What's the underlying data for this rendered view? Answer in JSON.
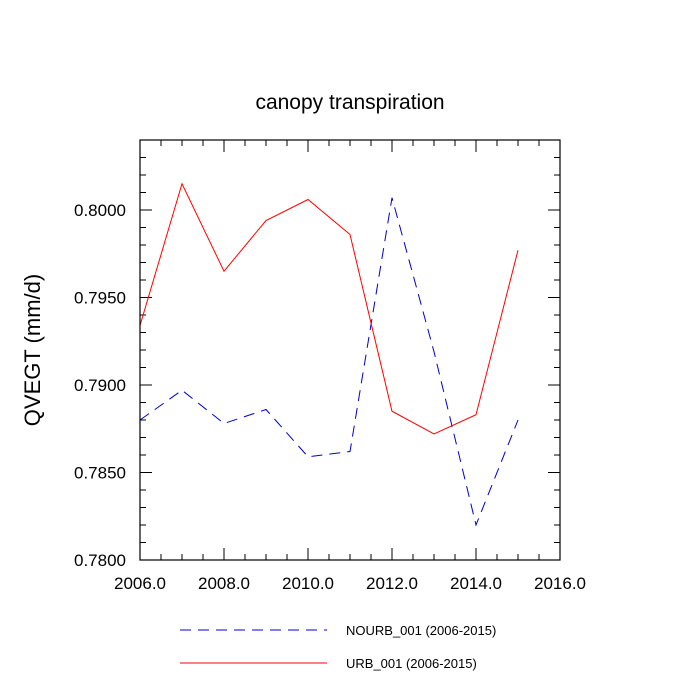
{
  "chart_data": {
    "type": "line",
    "title": "canopy transpiration",
    "xlabel": "",
    "ylabel": "QVEGT  (mm/d)",
    "xlim": [
      2006,
      2016
    ],
    "ylim": [
      0.78,
      0.804
    ],
    "x_ticks": [
      2006,
      2008,
      2010,
      2012,
      2014,
      2016
    ],
    "x_tick_labels": [
      "2006.0",
      "2008.0",
      "2010.0",
      "2012.0",
      "2014.0",
      "2016.0"
    ],
    "y_ticks": [
      0.78,
      0.785,
      0.79,
      0.795,
      0.8
    ],
    "y_tick_labels": [
      "0.7800",
      "0.7850",
      "0.7900",
      "0.7950",
      "0.8000"
    ],
    "x": [
      2006,
      2007,
      2008,
      2009,
      2010,
      2011,
      2012,
      2013,
      2014,
      2015
    ],
    "legend_position": "bottom",
    "grid": false,
    "series": [
      {
        "name": "NOURB_001 (2006-2015)",
        "color": "#0000cc",
        "style": "dashed",
        "values": [
          0.788,
          0.7897,
          0.7878,
          0.7886,
          0.7859,
          0.7862,
          0.8007,
          0.7919,
          0.782,
          0.788
        ]
      },
      {
        "name": "URB_001 (2006-2015)",
        "color": "#ff0000",
        "style": "solid",
        "values": [
          0.7934,
          0.8015,
          0.7965,
          0.7994,
          0.8006,
          0.7986,
          0.7885,
          0.7872,
          0.7883,
          0.7977
        ]
      }
    ]
  }
}
